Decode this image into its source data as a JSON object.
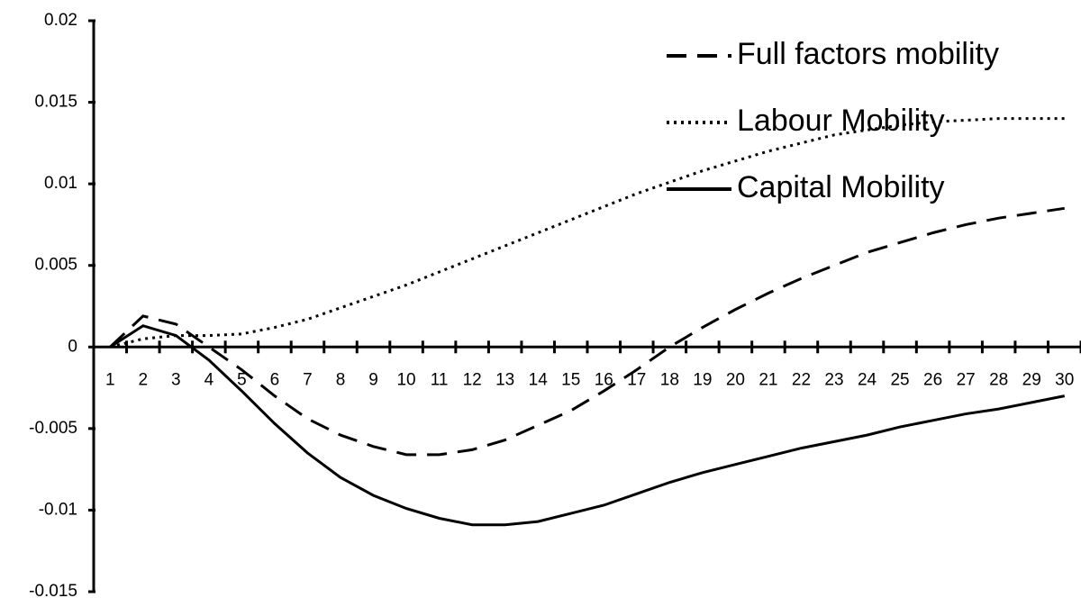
{
  "chart_data": {
    "type": "line",
    "categories": [
      "1",
      "2",
      "3",
      "4",
      "5",
      "6",
      "7",
      "8",
      "9",
      "10",
      "11",
      "12",
      "13",
      "14",
      "15",
      "16",
      "17",
      "18",
      "19",
      "20",
      "21",
      "22",
      "23",
      "24",
      "25",
      "26",
      "27",
      "28",
      "29",
      "30"
    ],
    "series": [
      {
        "name": "Full factors mobility",
        "color": "#000000",
        "dash": "dashed",
        "values": [
          0,
          0.0019,
          0.0014,
          0,
          -0.0014,
          -0.003,
          -0.0044,
          -0.0054,
          -0.0061,
          -0.0066,
          -0.0066,
          -0.0063,
          -0.0057,
          -0.0048,
          -0.0039,
          -0.0027,
          -0.0014,
          0,
          0.0012,
          0.0023,
          0.0033,
          0.0042,
          0.005,
          0.0058,
          0.0064,
          0.007,
          0.0075,
          0.0079,
          0.0082,
          0.0085
        ]
      },
      {
        "name": "Labour Mobility",
        "color": "#000000",
        "dash": "dotted",
        "values": [
          0,
          0.0005,
          0.0007,
          0.0007,
          0.0008,
          0.0012,
          0.0017,
          0.0024,
          0.0031,
          0.0038,
          0.0046,
          0.0054,
          0.0062,
          0.007,
          0.0078,
          0.0086,
          0.0094,
          0.0101,
          0.0108,
          0.0114,
          0.012,
          0.0125,
          0.013,
          0.0133,
          0.0136,
          0.0138,
          0.0139,
          0.014,
          0.014,
          0.014
        ]
      },
      {
        "name": "Capital Mobility",
        "color": "#000000",
        "dash": "solid",
        "values": [
          0,
          0.0013,
          0.0007,
          -0.0008,
          -0.0027,
          -0.0047,
          -0.0065,
          -0.008,
          -0.0091,
          -0.0099,
          -0.0105,
          -0.0109,
          -0.0109,
          -0.0107,
          -0.0102,
          -0.0097,
          -0.009,
          -0.0083,
          -0.0077,
          -0.0072,
          -0.0067,
          -0.0062,
          -0.0058,
          -0.0054,
          -0.0049,
          -0.0045,
          -0.0041,
          -0.0038,
          -0.0034,
          -0.003
        ]
      }
    ],
    "ylim": [
      -0.015,
      0.02
    ],
    "yticks": [
      -0.015,
      -0.01,
      -0.005,
      0,
      0.005,
      0.01,
      0.015,
      0.02
    ],
    "grid": false,
    "legend": "top-right"
  }
}
